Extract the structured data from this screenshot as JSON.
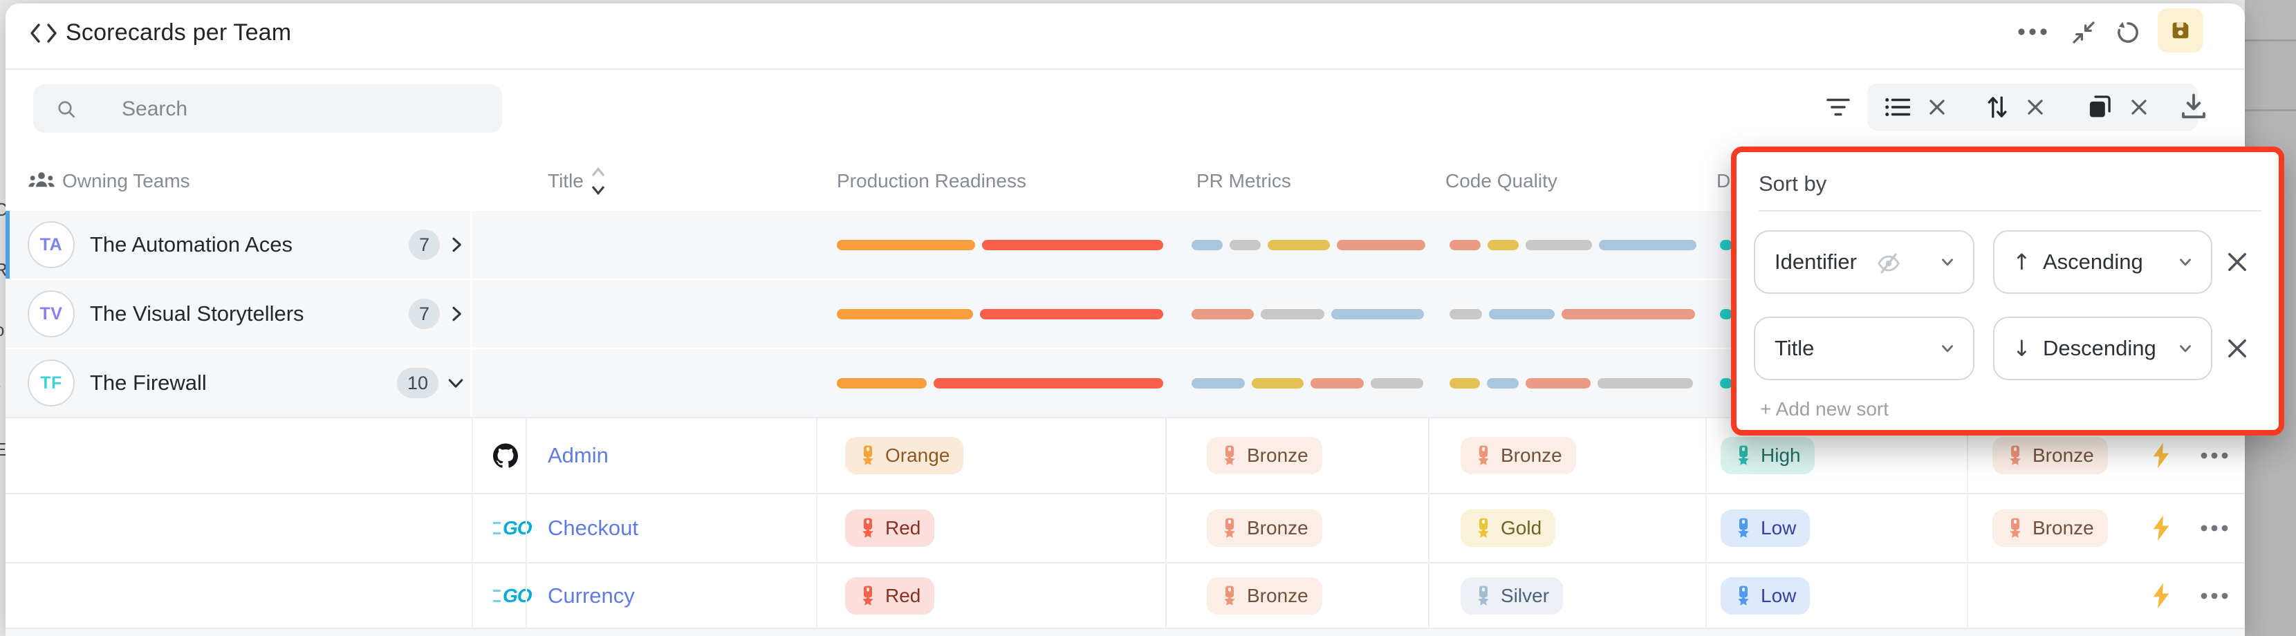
{
  "titlebar": {
    "title": "Scorecards per Team",
    "icons": [
      "code-icon",
      "more-options-icon",
      "collapse-icon",
      "undo-icon",
      "save-icon"
    ]
  },
  "toolbar": {
    "search_placeholder": "Search",
    "icons": [
      "filter-icon",
      "list-view-icon",
      "clear-icon",
      "sort-arrows-icon",
      "clear-icon",
      "copy-group-icon",
      "clear-icon",
      "download-icon"
    ]
  },
  "table": {
    "columns": [
      {
        "label": "Owning Teams",
        "icon": "team-icon"
      },
      {
        "label": "Title",
        "icon": "sort-carets-icon"
      },
      {
        "label": "Production Readiness"
      },
      {
        "label": "PR Metrics"
      },
      {
        "label": "Code Quality"
      },
      {
        "label": "D"
      }
    ],
    "teams": [
      {
        "initials": "TA",
        "initials_color": "#7c83ea",
        "name": "The Automation Aces",
        "count": "7",
        "chevron": "right",
        "selected": true,
        "bars": {
          "production_readiness": [
            [
              "orange",
              200
            ],
            [
              "red",
              262
            ]
          ],
          "pr_metrics": [
            [
              "blue",
              45
            ],
            [
              "gray",
              45
            ],
            [
              "yellow",
              90
            ],
            [
              "salmon",
              128
            ]
          ],
          "code_quality": [
            [
              "salmon",
              45
            ],
            [
              "yellow",
              45
            ],
            [
              "gray",
              96
            ],
            [
              "blue",
              141
            ]
          ],
          "hidden_col": [
            [
              "teal",
              18
            ]
          ]
        }
      },
      {
        "initials": "TV",
        "initials_color": "#8a7ff0",
        "name": "The Visual Storytellers",
        "count": "7",
        "chevron": "right",
        "selected": false,
        "bars": {
          "production_readiness": [
            [
              "orange",
              197
            ],
            [
              "red",
              265
            ]
          ],
          "pr_metrics": [
            [
              "salmon",
              90
            ],
            [
              "gray",
              92
            ],
            [
              "blue",
              134
            ]
          ],
          "code_quality": [
            [
              "gray",
              47
            ],
            [
              "blue",
              95
            ],
            [
              "salmon",
              193
            ]
          ],
          "hidden_col": [
            [
              "teal",
              18
            ]
          ]
        }
      },
      {
        "initials": "TF",
        "initials_color": "#3ed3d3",
        "name": "The Firewall",
        "count": "10",
        "chevron": "down",
        "selected": false,
        "bars": {
          "production_readiness": [
            [
              "orange",
              130
            ],
            [
              "red",
              332
            ]
          ],
          "pr_metrics": [
            [
              "blue",
              77
            ],
            [
              "yellow",
              75
            ],
            [
              "salmon",
              77
            ],
            [
              "gray",
              76
            ]
          ],
          "code_quality": [
            [
              "yellow",
              44
            ],
            [
              "blue",
              46
            ],
            [
              "salmon",
              94
            ],
            [
              "gray",
              138
            ]
          ],
          "hidden_col": [
            [
              "teal",
              18
            ]
          ]
        }
      }
    ],
    "services": [
      {
        "icon": "github",
        "title": "Admin",
        "badges": {
          "production_readiness": [
            "Orange",
            "orange"
          ],
          "pr_metrics": [
            "Bronze",
            "bronze"
          ],
          "code_quality": [
            "Bronze",
            "bronze"
          ],
          "hidden_col": [
            "High",
            "high"
          ],
          "extra_col": [
            "Bronze",
            "bronze"
          ]
        }
      },
      {
        "icon": "go",
        "title": "Checkout",
        "badges": {
          "production_readiness": [
            "Red",
            "red"
          ],
          "pr_metrics": [
            "Bronze",
            "bronze"
          ],
          "code_quality": [
            "Gold",
            "gold"
          ],
          "hidden_col": [
            "Low",
            "low"
          ],
          "extra_col": [
            "Bronze",
            "bronze"
          ]
        }
      },
      {
        "icon": "go",
        "title": "Currency",
        "badges": {
          "production_readiness": [
            "Red",
            "red"
          ],
          "pr_metrics": [
            "Bronze",
            "bronze"
          ],
          "code_quality": [
            "Silver",
            "silver"
          ],
          "hidden_col": [
            "Low",
            "low"
          ],
          "extra_col": null
        }
      }
    ]
  },
  "sort_panel": {
    "title": "Sort by",
    "rows": [
      {
        "field": "Identifier",
        "field_icon": "eye-off-icon",
        "direction": "Ascending",
        "direction_arrow": "↑"
      },
      {
        "field": "Title",
        "field_icon": null,
        "direction": "Descending",
        "direction_arrow": "↓"
      }
    ],
    "add_label": "+ Add new sort"
  },
  "background_fragments": [
    "C",
    "R",
    "o",
    "r",
    "E"
  ],
  "palette": {
    "bar": {
      "orange": "#f99d3f",
      "red": "#f9604b",
      "salmon": "#eb9a83",
      "gray": "#c9c8c6",
      "blue": "#a9c6de",
      "yellow": "#e5c054",
      "teal": "#1fc8c4"
    },
    "badge": {
      "orange": {
        "bg": "#fcead8",
        "fg": "#8a5a22",
        "icon": "#f6a33c"
      },
      "red": {
        "bg": "#fcdfda",
        "fg": "#8c2f23",
        "icon": "#f7604d"
      },
      "bronze": {
        "bg": "#faeee6",
        "fg": "#74503c",
        "icon": "#ee9478"
      },
      "gold": {
        "bg": "#f9f2d8",
        "fg": "#6d6223",
        "icon": "#ecc43c"
      },
      "silver": {
        "bg": "#edf1f5",
        "fg": "#4a617a",
        "icon": "#a2bcd2"
      },
      "high": {
        "bg": "#d9f3ee",
        "fg": "#1f6b63",
        "icon": "#2cb8ac"
      },
      "low": {
        "bg": "#ddeafc",
        "fg": "#3a3fa5",
        "icon": "#4f9aef"
      }
    },
    "accent": {
      "selected_row_bar": "#4aa2e6",
      "panel_border": "#f83b20",
      "link": "#5f7ce0",
      "save_bg": "#fcf1d4",
      "save_fg": "#8a6a15"
    }
  }
}
